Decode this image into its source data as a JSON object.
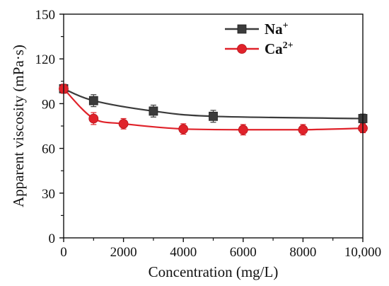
{
  "chart_data": {
    "type": "line",
    "xlabel": "Concentration (mg/L)",
    "ylabel": "Apparent viscosity (mPa·s)",
    "xlim": [
      0,
      10000
    ],
    "ylim": [
      0,
      150
    ],
    "x_ticks": [
      0,
      2000,
      4000,
      6000,
      8000,
      10000
    ],
    "x_tick_labels": [
      "0",
      "2000",
      "4000",
      "6000",
      "8000",
      "10,000"
    ],
    "y_ticks": [
      0,
      30,
      60,
      90,
      120,
      150
    ],
    "y_tick_labels": [
      "0",
      "30",
      "60",
      "90",
      "120",
      "150"
    ],
    "grid": false,
    "legend_position": "top-right",
    "series": [
      {
        "name": "Na",
        "name_superscript": "+",
        "color": "#3b3b3b",
        "marker": "square",
        "x": [
          0,
          1000,
          3000,
          5000,
          10000
        ],
        "values": [
          100,
          92,
          85,
          81.5,
          80
        ],
        "error": [
          3,
          4,
          4,
          4,
          3
        ]
      },
      {
        "name": "Ca",
        "name_superscript": "2+",
        "color": "#e0222a",
        "marker": "circle",
        "x": [
          0,
          1000,
          2000,
          4000,
          6000,
          8000,
          10000
        ],
        "values": [
          100,
          80,
          76.5,
          73,
          72.5,
          72.5,
          73.5
        ],
        "error": [
          3,
          4,
          3.5,
          3.5,
          3.5,
          3.5,
          3
        ]
      }
    ]
  }
}
